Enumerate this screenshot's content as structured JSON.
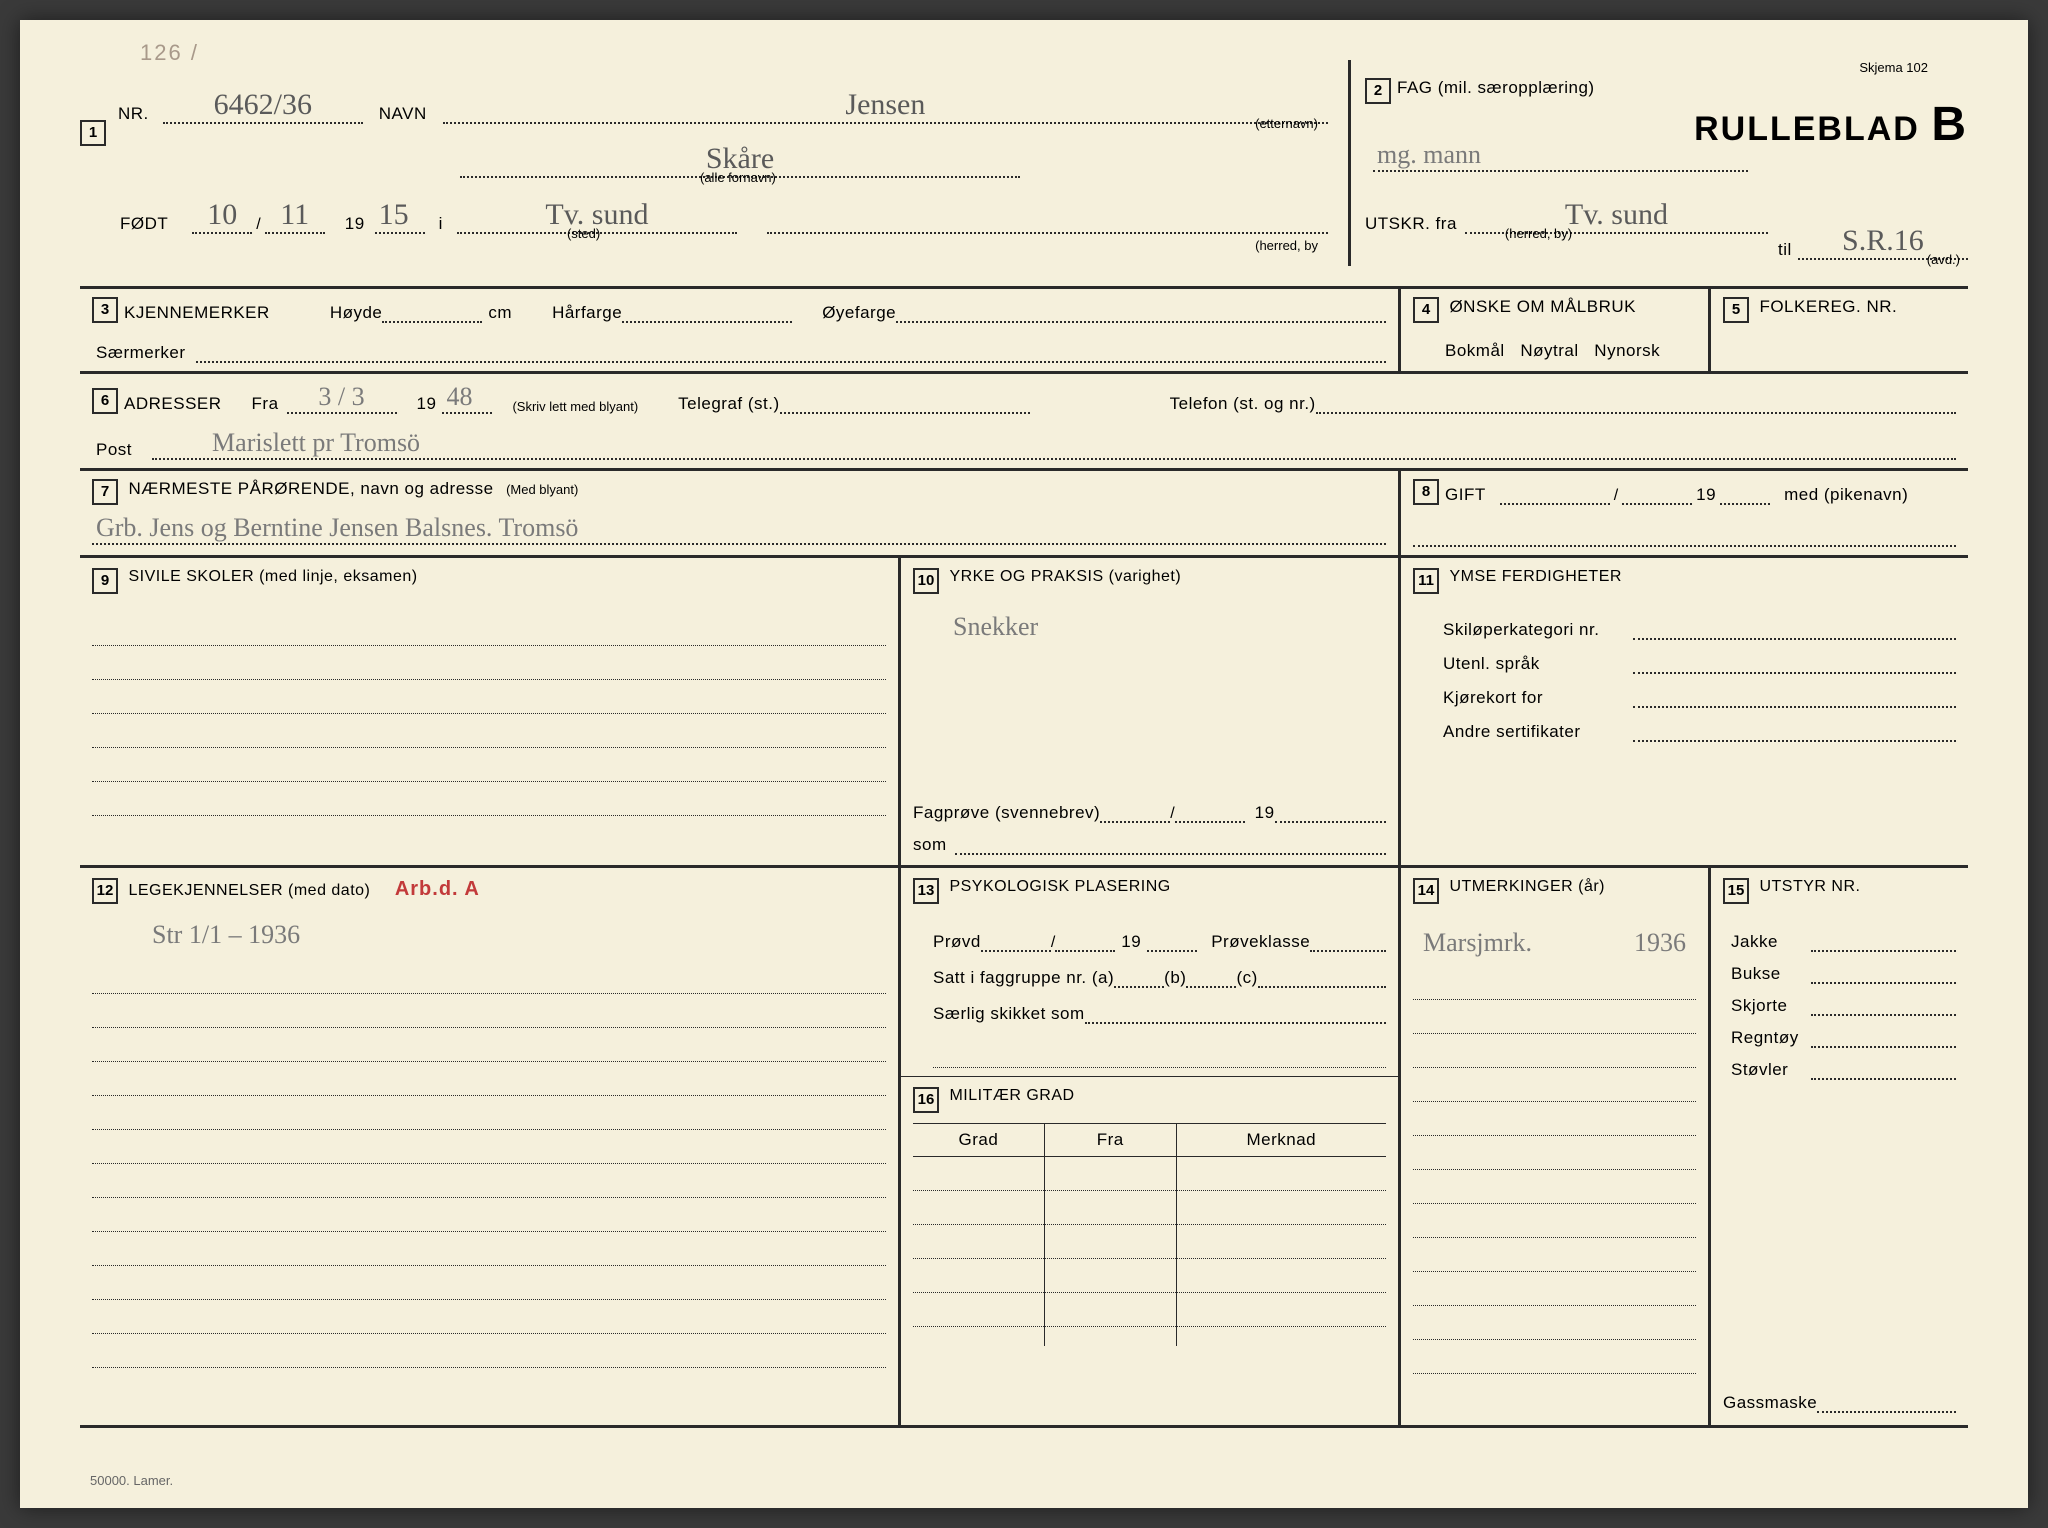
{
  "meta": {
    "page_stamp": "126 /",
    "skjema": "Skjema 102",
    "title": "RULLEBLAD",
    "title_suffix": "B",
    "footer": "50000. Lamer."
  },
  "box1": {
    "nr_label": "NR.",
    "nr_value": "6462/36",
    "navn_label": "NAVN",
    "etternavn": "Jensen",
    "etternavn_sub": "(etternavn)",
    "fornavn": "Skåre",
    "fornavn_sub": "(alle fornavn)",
    "fodt_label": "FØDT",
    "fodt_day": "10",
    "fodt_month": "11",
    "fodt_prefix": "19",
    "fodt_year": "15",
    "fodt_i": "i",
    "sted": "Tv. sund",
    "sted_sub": "(sted)",
    "herred_sub": "(herred, by"
  },
  "box2": {
    "label": "FAG (mil. særopplæring)",
    "value": "mg. mann",
    "utskr_label": "UTSKR. fra",
    "utskr_value": "Tv. sund",
    "utskr_sub": "(herred, by)",
    "til_label": "til",
    "til_value": "S.R.16",
    "til_sub": "(avd.)"
  },
  "box3": {
    "label": "KJENNEMERKER",
    "hoyde": "Høyde",
    "cm": "cm",
    "harfarge": "Hårfarge",
    "oyefarge": "Øyefarge",
    "saermerker": "Særmerker"
  },
  "box4": {
    "label": "ØNSKE OM MÅLBRUK",
    "opts": "Bokmål   Nøytral   Nynorsk"
  },
  "box5": {
    "label": "FOLKEREG. NR."
  },
  "box6": {
    "label": "ADRESSER",
    "fra": "Fra",
    "fra_val": "3 / 3",
    "yr_prefix": "19",
    "yr_val": "48",
    "skriv": "(Skriv lett med blyant)",
    "telegraf": "Telegraf (st.)",
    "telefon": "Telefon (st. og nr.)",
    "post": "Post",
    "post_val": "Marislett  pr  Tromsö"
  },
  "box7": {
    "label": "NÆRMESTE PÅRØRENDE, navn og adresse",
    "hint": "(Med blyant)",
    "value": "Grb. Jens og Berntine Jensen  Balsnes. Tromsö"
  },
  "box8": {
    "label": "GIFT",
    "yr": "19",
    "med": "med (pikenavn)"
  },
  "box9": {
    "label": "SIVILE SKOLER (med linje, eksamen)"
  },
  "box10": {
    "label": "YRKE OG PRAKSIS (varighet)",
    "value": "Snekker",
    "fagprove": "Fagprøve (svennebrev)",
    "yr": "19",
    "som": "som"
  },
  "box11": {
    "label": "YMSE FERDIGHETER",
    "l1": "Skiløperkategori nr.",
    "l2": "Utenl. språk",
    "l3": "Kjørekort for",
    "l4": "Andre sertifikater"
  },
  "box12": {
    "label": "LEGEKJENNELSER (med dato)",
    "arbd": "Arb.d. A",
    "line": "Str  1/1 – 1936"
  },
  "box13": {
    "label": "PSYKOLOGISK PLASERING",
    "provd": "Prøvd",
    "yr": "19",
    "proveklasse": "Prøveklasse",
    "satt": "Satt i faggruppe nr. (a)",
    "b": "(b)",
    "c": "(c)",
    "saerlig": "Særlig skikket som"
  },
  "box14": {
    "label": "UTMERKINGER (år)",
    "line": "Marsjmrk.",
    "year": "1936"
  },
  "box15": {
    "label": "UTSTYR NR.",
    "items": [
      "Jakke",
      "Bukse",
      "Skjorte",
      "Regntøy",
      "Støvler"
    ],
    "gass": "Gassmaske"
  },
  "box16": {
    "label": "MILITÆR GRAD",
    "cols": [
      "Grad",
      "Fra",
      "Merknad"
    ]
  },
  "colors": {
    "paper": "#f5f0dc",
    "ink": "#2a2a2a",
    "pencil": "#7a7a7a",
    "red": "#c23a3a"
  }
}
